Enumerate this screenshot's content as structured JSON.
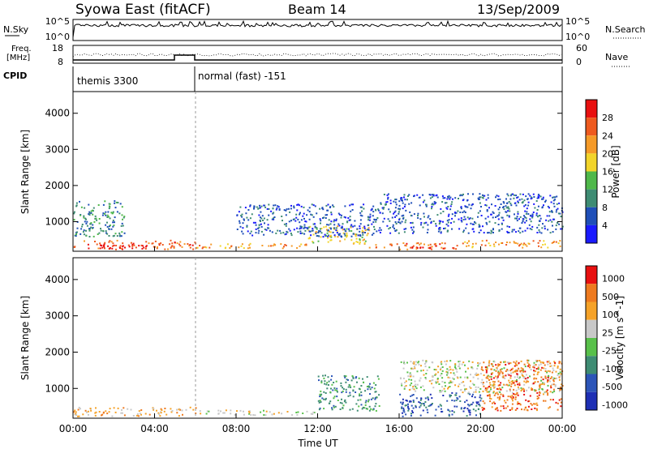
{
  "header": {
    "station": "Syowa East (fitACF)",
    "beam": "Beam 14",
    "date": "13/Sep/2009"
  },
  "noise_panel": {
    "left_label": "N.Sky",
    "left_top": "10^5",
    "left_bottom": "10^0",
    "right_label": "N.Search",
    "right_top": "10^5",
    "right_bottom": "10^0"
  },
  "freq_panel": {
    "left_label_1": "Freq.",
    "left_label_2": "[MHz]",
    "left_top": "18",
    "left_bottom": "8",
    "right_label": "Nave",
    "right_top": "60",
    "right_bottom": "0"
  },
  "cpid_panel": {
    "label": "CPID",
    "program_1": "themis 3300",
    "program_2": "normal (fast) -151"
  },
  "chart_data": [
    {
      "type": "heatmap",
      "quantity": "Power",
      "ylabel": "Slant Range [km]",
      "yticks": [
        "1000",
        "2000",
        "3000",
        "4000"
      ],
      "ylim": [
        180,
        4600
      ],
      "xlim": [
        0,
        24
      ],
      "colorbar_label": "Power [dB]",
      "colorbar_ticks": [
        "4",
        "8",
        "12",
        "16",
        "20",
        "24",
        "28"
      ],
      "colors": [
        "#1a1aff",
        "#1f4fb8",
        "#3e8c73",
        "#4fb84a",
        "#f2d42a",
        "#f59a28",
        "#ee5a1f",
        "#e81010"
      ],
      "regions": [
        {
          "t": [
            0.0,
            6.0
          ],
          "r": [
            250,
            500
          ],
          "level": 6
        },
        {
          "t": [
            1.2,
            3.6
          ],
          "r": [
            250,
            380
          ],
          "level": 7
        },
        {
          "t": [
            6.0,
            11.5
          ],
          "r": [
            280,
            420
          ],
          "level": 5
        },
        {
          "t": [
            11.5,
            14.5
          ],
          "r": [
            400,
            900
          ],
          "level": 4
        },
        {
          "t": [
            14.5,
            16.0
          ],
          "r": [
            300,
            420
          ],
          "level": 5
        },
        {
          "t": [
            16.0,
            19.0
          ],
          "r": [
            250,
            450
          ],
          "level": 6
        },
        {
          "t": [
            16.5,
            19.0
          ],
          "r": [
            260,
            340
          ],
          "level": 7
        },
        {
          "t": [
            19.0,
            24.0
          ],
          "r": [
            300,
            500
          ],
          "level": 5
        },
        {
          "t": [
            15.0,
            24.0
          ],
          "r": [
            700,
            1800
          ],
          "level": 1
        },
        {
          "t": [
            8.0,
            15.0
          ],
          "r": [
            600,
            1500
          ],
          "level": 1
        },
        {
          "t": [
            0.0,
            2.5
          ],
          "r": [
            600,
            1600
          ],
          "level": 2
        }
      ]
    },
    {
      "type": "heatmap",
      "quantity": "Velocity",
      "ylabel": "Slant Range [km]",
      "yticks": [
        "1000",
        "2000",
        "3000",
        "4000"
      ],
      "ylim": [
        180,
        4600
      ],
      "xlim": [
        0,
        24
      ],
      "xlabel": "Time UT",
      "xticks": [
        "00:00",
        "04:00",
        "08:00",
        "12:00",
        "16:00",
        "20:00",
        "00:00"
      ],
      "colorbar_label": "Velocity [m s^-1]",
      "colorbar_ticks": [
        "1000",
        "500",
        "100",
        "25",
        "-25",
        "-100",
        "-500",
        "-1000"
      ],
      "colors": [
        "#1e2fb4",
        "#2c55b8",
        "#3e8c73",
        "#58c04a",
        "#c8c8c8",
        "#f5a228",
        "#ee7a1f",
        "#e81010"
      ],
      "regions": [
        {
          "t": [
            0.0,
            6.0
          ],
          "r": [
            250,
            500
          ],
          "level": 5
        },
        {
          "t": [
            6.0,
            12.0
          ],
          "r": [
            280,
            420
          ],
          "level": 4
        },
        {
          "t": [
            12.0,
            15.0
          ],
          "r": [
            400,
            1400
          ],
          "level": 2
        },
        {
          "t": [
            16.0,
            20.0
          ],
          "r": [
            250,
            900
          ],
          "level": 1
        },
        {
          "t": [
            16.0,
            24.0
          ],
          "r": [
            900,
            1800
          ],
          "level": 4
        },
        {
          "t": [
            20.0,
            24.0
          ],
          "r": [
            400,
            1800
          ],
          "level": 6
        }
      ]
    }
  ]
}
